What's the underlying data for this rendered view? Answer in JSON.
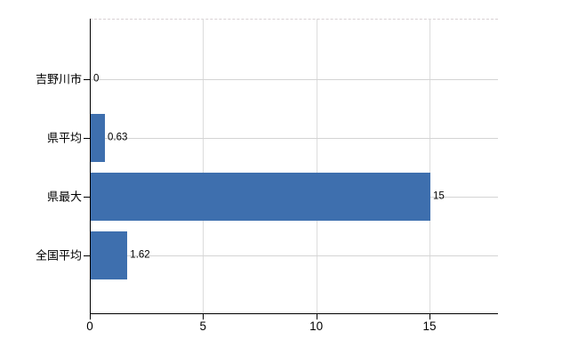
{
  "chart_data": {
    "type": "bar",
    "orientation": "horizontal",
    "categories": [
      "吉野川市",
      "県平均",
      "県最大",
      "全国平均"
    ],
    "values": [
      0,
      0.63,
      15,
      1.62
    ],
    "value_labels": [
      "0",
      "0.63",
      "15",
      "1.62"
    ],
    "x_tick_labels": [
      "0",
      "5",
      "10",
      "15"
    ],
    "x_tick_values": [
      0,
      5,
      10,
      15
    ],
    "xlim": [
      0,
      18
    ],
    "grid": true,
    "legend": "none",
    "colors": {
      "bar": "#3e6fae",
      "axis": "#000000",
      "vertical_gridline": "#dcdcdc",
      "category_gridline": "#d4d4d4",
      "plot_border": "#d8d0d3",
      "text": "#000000"
    }
  }
}
